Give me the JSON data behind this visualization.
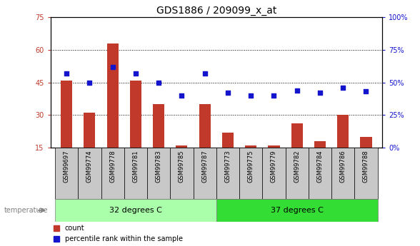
{
  "title": "GDS1886 / 209099_x_at",
  "categories": [
    "GSM99697",
    "GSM99774",
    "GSM99778",
    "GSM99781",
    "GSM99783",
    "GSM99785",
    "GSM99787",
    "GSM99773",
    "GSM99775",
    "GSM99779",
    "GSM99782",
    "GSM99784",
    "GSM99786",
    "GSM99788"
  ],
  "count_values": [
    46,
    31,
    63,
    46,
    35,
    16,
    35,
    22,
    16,
    16,
    26,
    18,
    30,
    20
  ],
  "percentile_values": [
    57,
    50,
    62,
    57,
    50,
    40,
    57,
    42,
    40,
    40,
    44,
    42,
    46,
    43
  ],
  "group1_label": "32 degrees C",
  "group2_label": "37 degrees C",
  "group1_count": 7,
  "group2_count": 7,
  "ylim_left": [
    15,
    75
  ],
  "ylim_right": [
    0,
    100
  ],
  "yticks_left": [
    15,
    30,
    45,
    60,
    75
  ],
  "yticks_right": [
    0,
    25,
    50,
    75,
    100
  ],
  "bar_color": "#C0392B",
  "dot_color": "#1414CC",
  "bar_bottom": 15,
  "tick_bg_color": "#C8C8C8",
  "group1_bg": "#AAFFAA",
  "group2_bg": "#33DD33",
  "temp_label": "temperature",
  "legend_items": [
    "count",
    "percentile rank within the sample"
  ],
  "title_fontsize": 10,
  "tick_fontsize": 7,
  "label_fontsize": 7,
  "group_label_fontsize": 8
}
